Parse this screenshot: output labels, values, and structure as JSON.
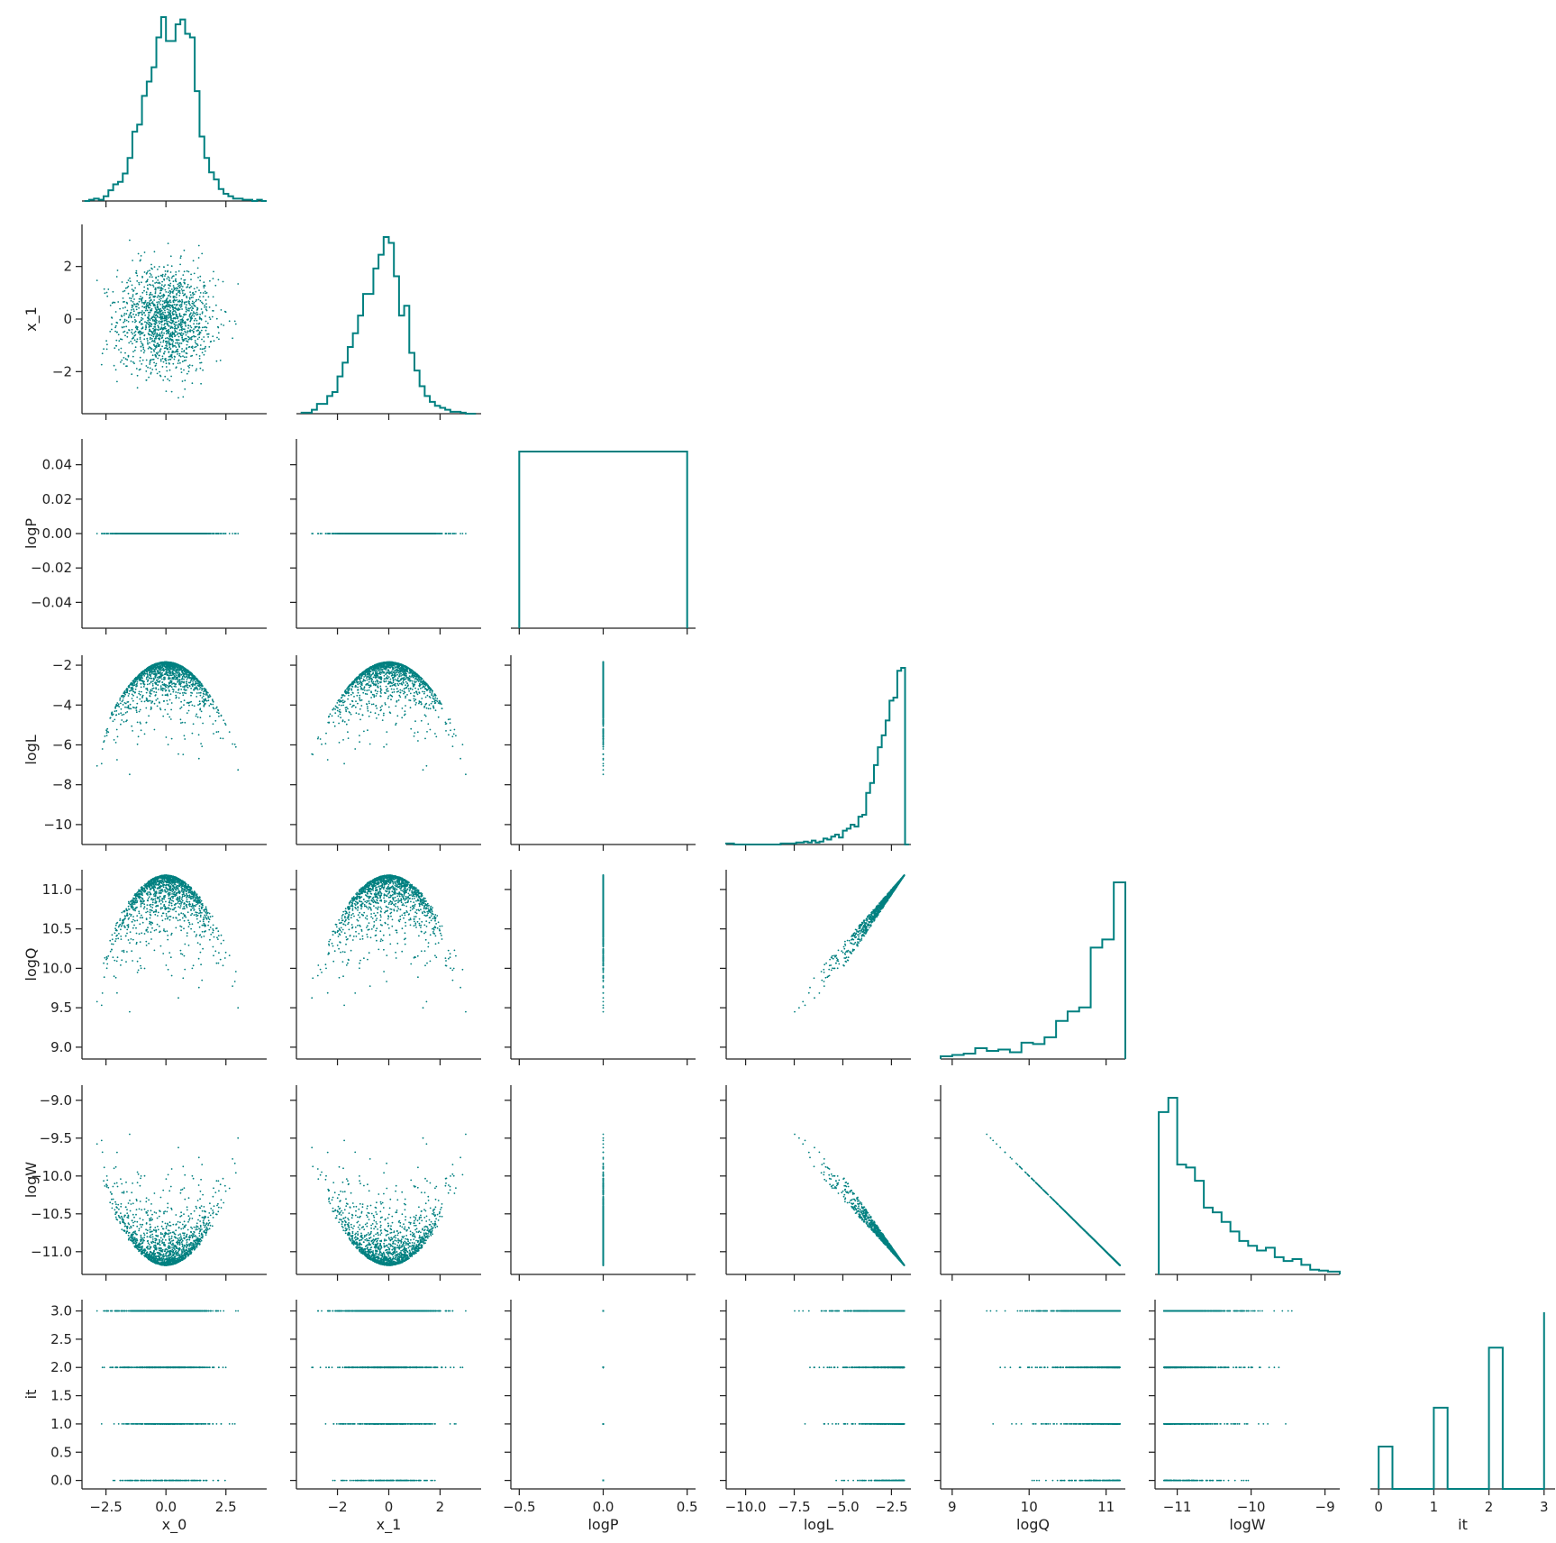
{
  "chart_data": {
    "type": "corner-pairplot",
    "variables": [
      "x_0",
      "x_1",
      "logP",
      "logL",
      "logQ",
      "logW",
      "it"
    ],
    "color": "#008080",
    "axes_labels": {
      "x_0": "x_0",
      "x_1": "x_1",
      "logP": "logP",
      "logL": "logL",
      "logQ": "logQ",
      "logW": "logW",
      "it": "it"
    },
    "ranges": {
      "x_0": [
        -3.5,
        4.2
      ],
      "x_1": [
        -3.6,
        3.6
      ],
      "logP": [
        -0.55,
        0.55
      ],
      "logL": [
        -11.0,
        -1.5
      ],
      "logQ": [
        8.85,
        11.25
      ],
      "logW": [
        -11.3,
        -8.8
      ],
      "it": [
        -0.15,
        3.2
      ]
    },
    "scatter_y_ranges": {
      "x_1": [
        -3.6,
        3.6
      ],
      "logP": [
        -0.055,
        0.055
      ],
      "logL": [
        -11.0,
        -1.5
      ],
      "logQ": [
        8.85,
        11.25
      ],
      "logW": [
        -11.3,
        -8.8
      ],
      "it": [
        -0.15,
        3.2
      ]
    },
    "ticks": {
      "x_0": {
        "values": [
          -2.5,
          0,
          2.5
        ],
        "labels": [
          "−2.5",
          "0.0",
          "2.5"
        ]
      },
      "x_1": {
        "values": [
          -2,
          0,
          2
        ],
        "labels": [
          "−2",
          "0",
          "2"
        ]
      },
      "logP": {
        "values": [
          -0.5,
          0,
          0.5
        ],
        "labels": [
          "−0.5",
          "0.0",
          "0.5"
        ]
      },
      "logL": {
        "values": [
          -10,
          -7.5,
          -5,
          -2.5
        ],
        "labels": [
          "−10.0",
          "−7.5",
          "−5.0",
          "−2.5"
        ]
      },
      "logQ": {
        "values": [
          9,
          10,
          11
        ],
        "labels": [
          "9",
          "10",
          "11"
        ]
      },
      "logW": {
        "values": [
          -11,
          -10,
          -9
        ],
        "labels": [
          "−11",
          "−10",
          "−9"
        ]
      },
      "it": {
        "values": [
          0,
          1,
          2,
          3
        ],
        "labels": [
          "0",
          "1",
          "2",
          "3"
        ]
      }
    },
    "y_ticks": {
      "x_1": {
        "values": [
          -2,
          0,
          2
        ],
        "labels": [
          "−2",
          "0",
          "2"
        ]
      },
      "logP": {
        "values": [
          -0.04,
          -0.02,
          0,
          0.02,
          0.04
        ],
        "labels": [
          "−0.04",
          "−0.02",
          "0.00",
          "0.02",
          "0.04"
        ]
      },
      "logL": {
        "values": [
          -10,
          -8,
          -6,
          -4,
          -2
        ],
        "labels": [
          "−10",
          "−8",
          "−6",
          "−4",
          "−2"
        ]
      },
      "logQ": {
        "values": [
          9.0,
          9.5,
          10.0,
          10.5,
          11.0
        ],
        "labels": [
          "9.0",
          "9.5",
          "10.0",
          "10.5",
          "11.0"
        ]
      },
      "logW": {
        "values": [
          -11.0,
          -10.5,
          -10.0,
          -9.5,
          -9.0
        ],
        "labels": [
          "−11.0",
          "−10.5",
          "−10.0",
          "−9.5",
          "−9.0"
        ]
      },
      "it": {
        "values": [
          0,
          0.5,
          1,
          1.5,
          2,
          2.5,
          3
        ],
        "labels": [
          "0.0",
          "0.5",
          "1.0",
          "1.5",
          "2.0",
          "2.5",
          "3.0"
        ]
      }
    },
    "histograms": {
      "x_0": {
        "edges": [
          -3.4,
          -3.2,
          -3.0,
          -2.8,
          -2.6,
          -2.4,
          -2.2,
          -2.0,
          -1.8,
          -1.6,
          -1.4,
          -1.2,
          -1.0,
          -0.8,
          -0.6,
          -0.4,
          -0.2,
          0.0,
          0.2,
          0.4,
          0.6,
          0.8,
          1.0,
          1.2,
          1.4,
          1.6,
          1.8,
          2.0,
          2.2,
          2.4,
          2.6,
          2.8,
          3.0,
          3.2,
          3.4,
          3.6,
          3.8,
          4.0,
          4.2
        ],
        "counts": [
          0,
          1,
          2,
          1,
          4,
          9,
          14,
          16,
          23,
          36,
          58,
          64,
          88,
          100,
          112,
          137,
          154,
          134,
          134,
          148,
          152,
          140,
          137,
          92,
          54,
          36,
          24,
          18,
          10,
          6,
          4,
          2,
          2,
          1,
          1,
          0,
          1,
          0
        ]
      },
      "x_1": {
        "edges": [
          -3.4,
          -3.2,
          -3.0,
          -2.8,
          -2.6,
          -2.4,
          -2.2,
          -2.0,
          -1.8,
          -1.6,
          -1.4,
          -1.2,
          -1.0,
          -0.8,
          -0.6,
          -0.4,
          -0.2,
          0.0,
          0.2,
          0.4,
          0.6,
          0.8,
          1.0,
          1.2,
          1.4,
          1.6,
          1.8,
          2.0,
          2.2,
          2.4,
          2.6,
          2.8,
          3.0,
          3.2,
          3.4
        ],
        "counts": [
          1,
          1,
          4,
          10,
          10,
          18,
          22,
          38,
          52,
          68,
          82,
          100,
          122,
          122,
          148,
          162,
          180,
          174,
          140,
          100,
          110,
          62,
          44,
          28,
          18,
          12,
          8,
          6,
          4,
          2,
          2,
          1,
          0,
          0
        ]
      },
      "logP": {
        "edges": [
          -0.5,
          0.5
        ],
        "counts": [
          1
        ]
      },
      "logL": {
        "edges": [
          -11.0,
          -10.6,
          -10.2,
          -9.8,
          -9.4,
          -9.0,
          -8.6,
          -8.2,
          -7.8,
          -7.4,
          -7.0,
          -6.8,
          -6.6,
          -6.4,
          -6.2,
          -6.0,
          -5.8,
          -5.6,
          -5.4,
          -5.2,
          -5.0,
          -4.8,
          -4.6,
          -4.4,
          -4.2,
          -4.0,
          -3.8,
          -3.6,
          -3.4,
          -3.2,
          -3.0,
          -2.8,
          -2.6,
          -2.4,
          -2.2,
          -2.0,
          -1.8,
          -1.6
        ],
        "counts": [
          1,
          0,
          0,
          0,
          0,
          0,
          0,
          1,
          1,
          2,
          3,
          2,
          4,
          2,
          3,
          6,
          5,
          8,
          10,
          7,
          14,
          16,
          20,
          18,
          28,
          30,
          52,
          62,
          80,
          98,
          110,
          125,
          145,
          148,
          175,
          178,
          0
        ]
      },
      "logQ": {
        "edges": [
          8.85,
          9.0,
          9.15,
          9.3,
          9.45,
          9.6,
          9.75,
          9.9,
          10.05,
          10.2,
          10.35,
          10.5,
          10.65,
          10.8,
          10.95,
          11.1,
          11.25
        ],
        "counts": [
          2,
          3,
          4,
          8,
          6,
          7,
          5,
          12,
          11,
          16,
          28,
          35,
          38,
          82,
          88,
          130
        ]
      },
      "logW": {
        "edges": [
          -11.25,
          -11.12,
          -11.0,
          -10.88,
          -10.76,
          -10.64,
          -10.52,
          -10.4,
          -10.28,
          -10.16,
          -10.04,
          -9.92,
          -9.8,
          -9.68,
          -9.56,
          -9.44,
          -9.32,
          -9.2,
          -9.08,
          -8.96,
          -8.8
        ],
        "counts": [
          170,
          185,
          115,
          112,
          98,
          70,
          65,
          55,
          45,
          35,
          30,
          25,
          28,
          18,
          14,
          16,
          10,
          5,
          4,
          3
        ]
      },
      "it": {
        "edges": [
          0.0,
          0.25,
          0.75,
          1.0,
          1.25,
          1.75,
          2.0,
          2.25,
          2.75,
          3.0
        ],
        "counts": [
          0.24,
          0,
          0,
          0.46,
          0,
          0,
          0.8,
          0,
          0,
          1.0
        ]
      }
    }
  }
}
